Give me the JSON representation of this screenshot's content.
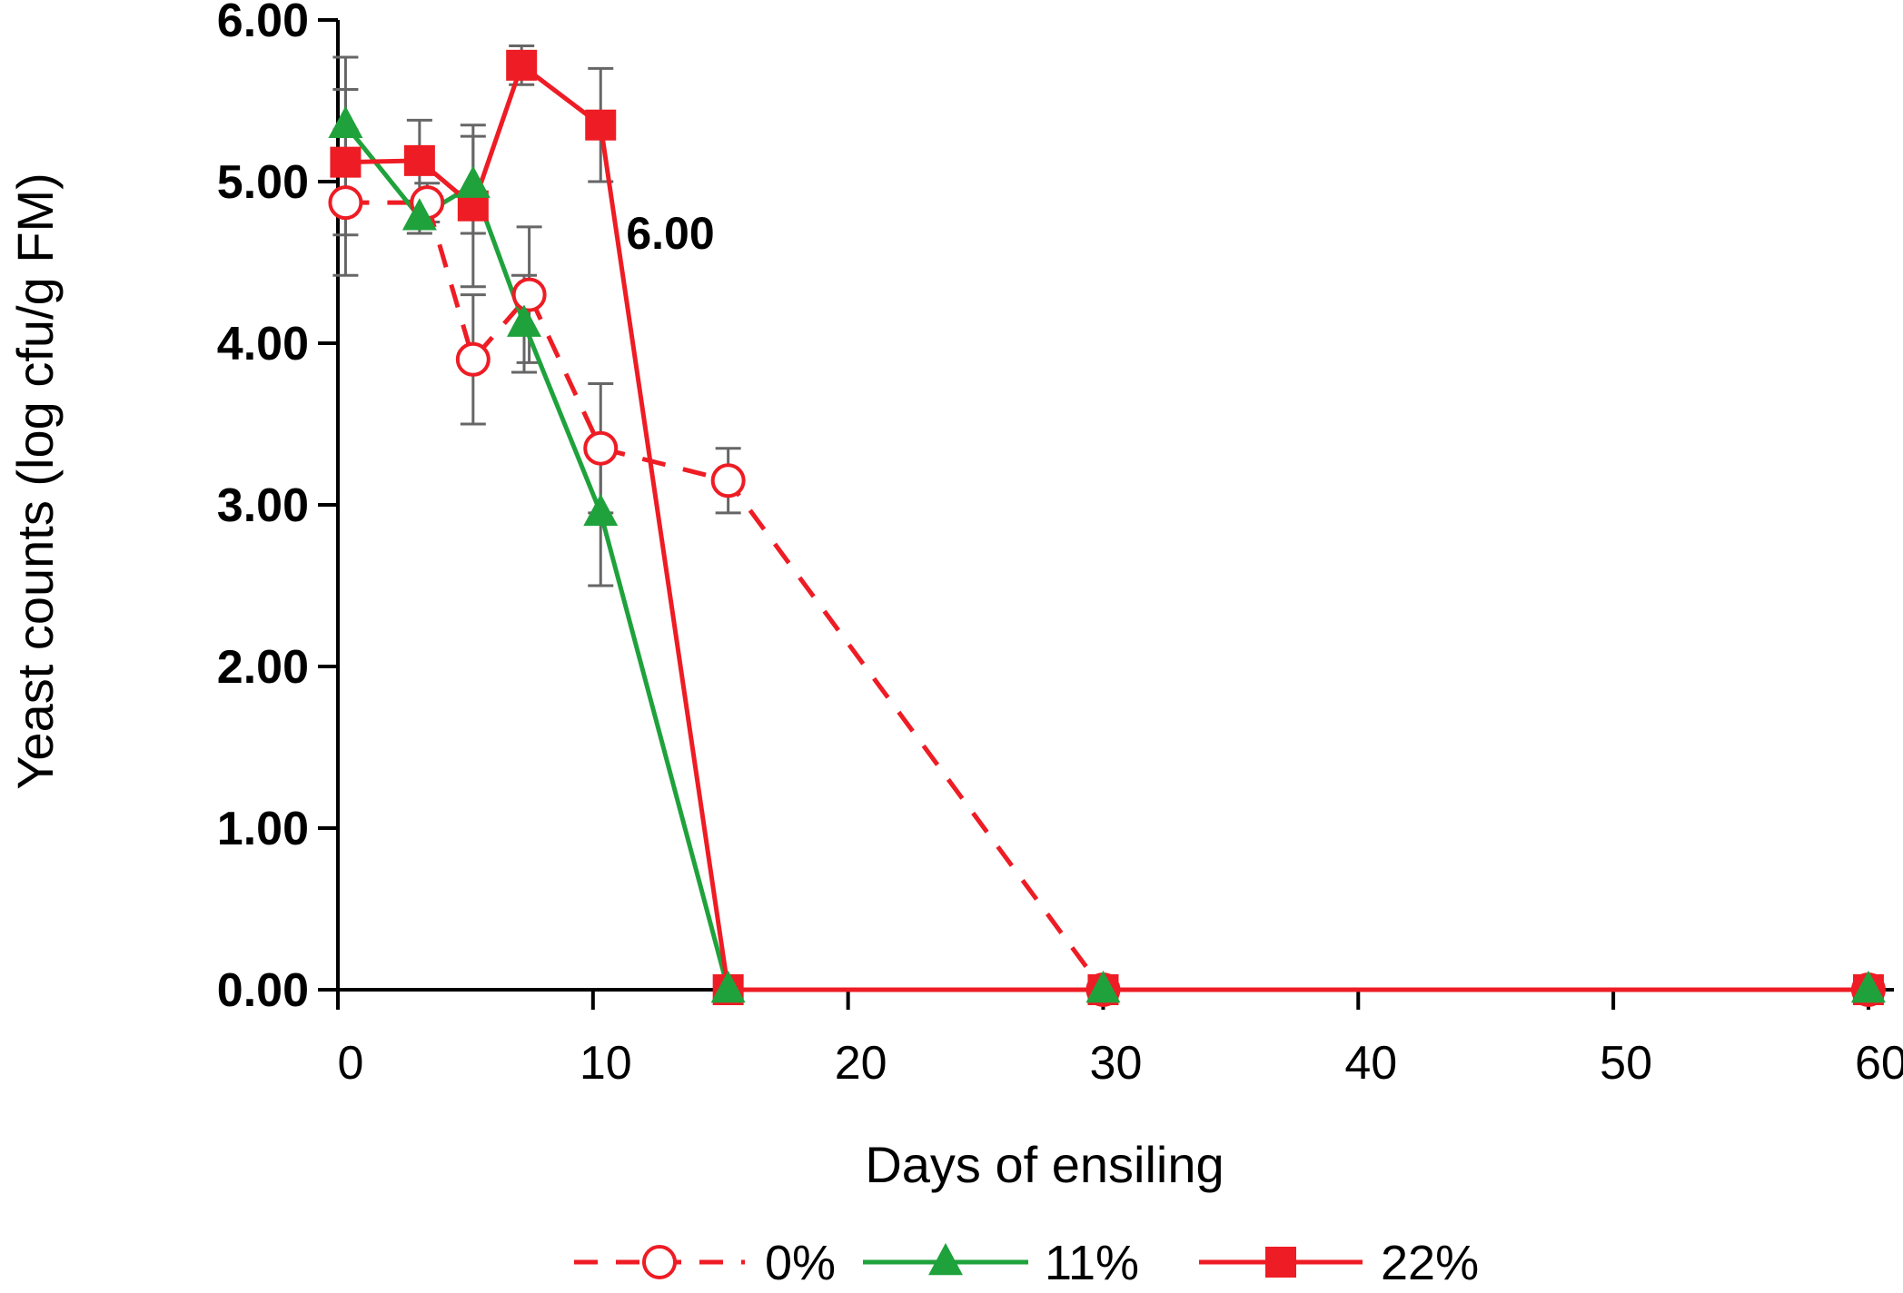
{
  "chart_data": {
    "type": "line",
    "title": "",
    "xlabel": "Days of ensiling",
    "ylabel": "Yeast counts (log cfu/g FM)",
    "xlim": [
      0,
      61
    ],
    "ylim": [
      0,
      6
    ],
    "xticks": [
      0,
      10,
      20,
      30,
      40,
      50,
      60
    ],
    "xtick_labels": [
      "0",
      "10",
      "20",
      "30",
      "40",
      "50",
      "60"
    ],
    "yticks": [
      0,
      1,
      2,
      3,
      4,
      5,
      6
    ],
    "ytick_labels": [
      "0.00",
      "1.00",
      "2.00",
      "3.00",
      "4.00",
      "5.00",
      "6.00"
    ],
    "grid": false,
    "legend_position": "bottom",
    "annotation": "6.00",
    "series": [
      {
        "name": "0%",
        "color": "#ee1c24",
        "marker": "open-circle",
        "line": "dashed",
        "x": [
          0.3,
          3.5,
          5.3,
          7.5,
          10.3,
          15.3,
          30,
          60
        ],
        "y": [
          4.87,
          4.87,
          3.9,
          4.3,
          3.35,
          3.15,
          0,
          0
        ],
        "err": [
          0.45,
          0.12,
          0.4,
          0.42,
          0.4,
          0.2,
          0,
          0
        ]
      },
      {
        "name": "11%",
        "color": "#1fa23c",
        "marker": "filled-triangle",
        "line": "solid",
        "x": [
          0.3,
          3.2,
          5.3,
          7.3,
          10.3,
          15.3,
          30,
          60
        ],
        "y": [
          5.35,
          4.78,
          4.98,
          4.12,
          2.95,
          0,
          0,
          0
        ],
        "err": [
          0.42,
          0.1,
          0.3,
          0.3,
          0.45,
          0,
          0,
          0
        ]
      },
      {
        "name": "22%",
        "color": "#ee1c24",
        "marker": "filled-square",
        "line": "solid",
        "x": [
          0.3,
          3.2,
          5.3,
          7.2,
          10.3,
          15.3,
          30,
          60
        ],
        "y": [
          5.12,
          5.13,
          4.85,
          5.72,
          5.35,
          0,
          0,
          0
        ],
        "err": [
          0.45,
          0.25,
          0.5,
          0.12,
          0.35,
          0,
          0,
          0
        ]
      }
    ]
  }
}
